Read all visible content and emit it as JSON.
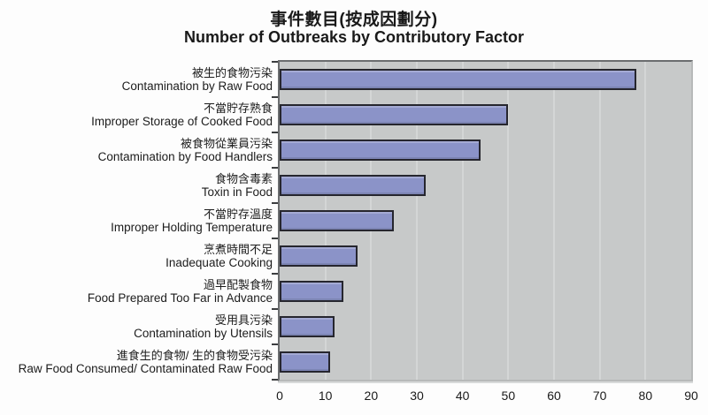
{
  "chart_data": {
    "type": "bar",
    "orientation": "horizontal",
    "title_zh": "事件數目(按成因劃分)",
    "title_en": "Number of Outbreaks by Contributory Factor",
    "categories": [
      {
        "zh": "被生的食物污染",
        "en": "Contamination by Raw Food"
      },
      {
        "zh": "不當貯存熟食",
        "en": "Improper Storage of Cooked Food"
      },
      {
        "zh": "被食物從業員污染",
        "en": "Contamination by Food Handlers"
      },
      {
        "zh": "食物含毒素",
        "en": "Toxin in Food"
      },
      {
        "zh": "不當貯存溫度",
        "en": "Improper Holding Temperature"
      },
      {
        "zh": "烹煮時間不足",
        "en": "Inadequate Cooking"
      },
      {
        "zh": "過早配製食物",
        "en": "Food Prepared Too Far in Advance"
      },
      {
        "zh": "受用具污染",
        "en": "Contamination by Utensils"
      },
      {
        "zh": "進食生的食物/ 生的食物受污染",
        "en": "Raw Food Consumed/ Contaminated Raw Food"
      }
    ],
    "values": [
      78,
      50,
      44,
      32,
      25,
      17,
      14,
      12,
      11
    ],
    "xlim": [
      0,
      90
    ],
    "xticks": [
      0,
      10,
      20,
      30,
      40,
      50,
      60,
      70,
      80,
      90
    ],
    "grid": true,
    "legend": false,
    "colors": {
      "bar_fill": "#8b93c8",
      "bar_border": "#26262e",
      "plot_bg": "#c7c9c9",
      "gridline": "#d4d6d6",
      "text": "#1a1a1a"
    }
  }
}
